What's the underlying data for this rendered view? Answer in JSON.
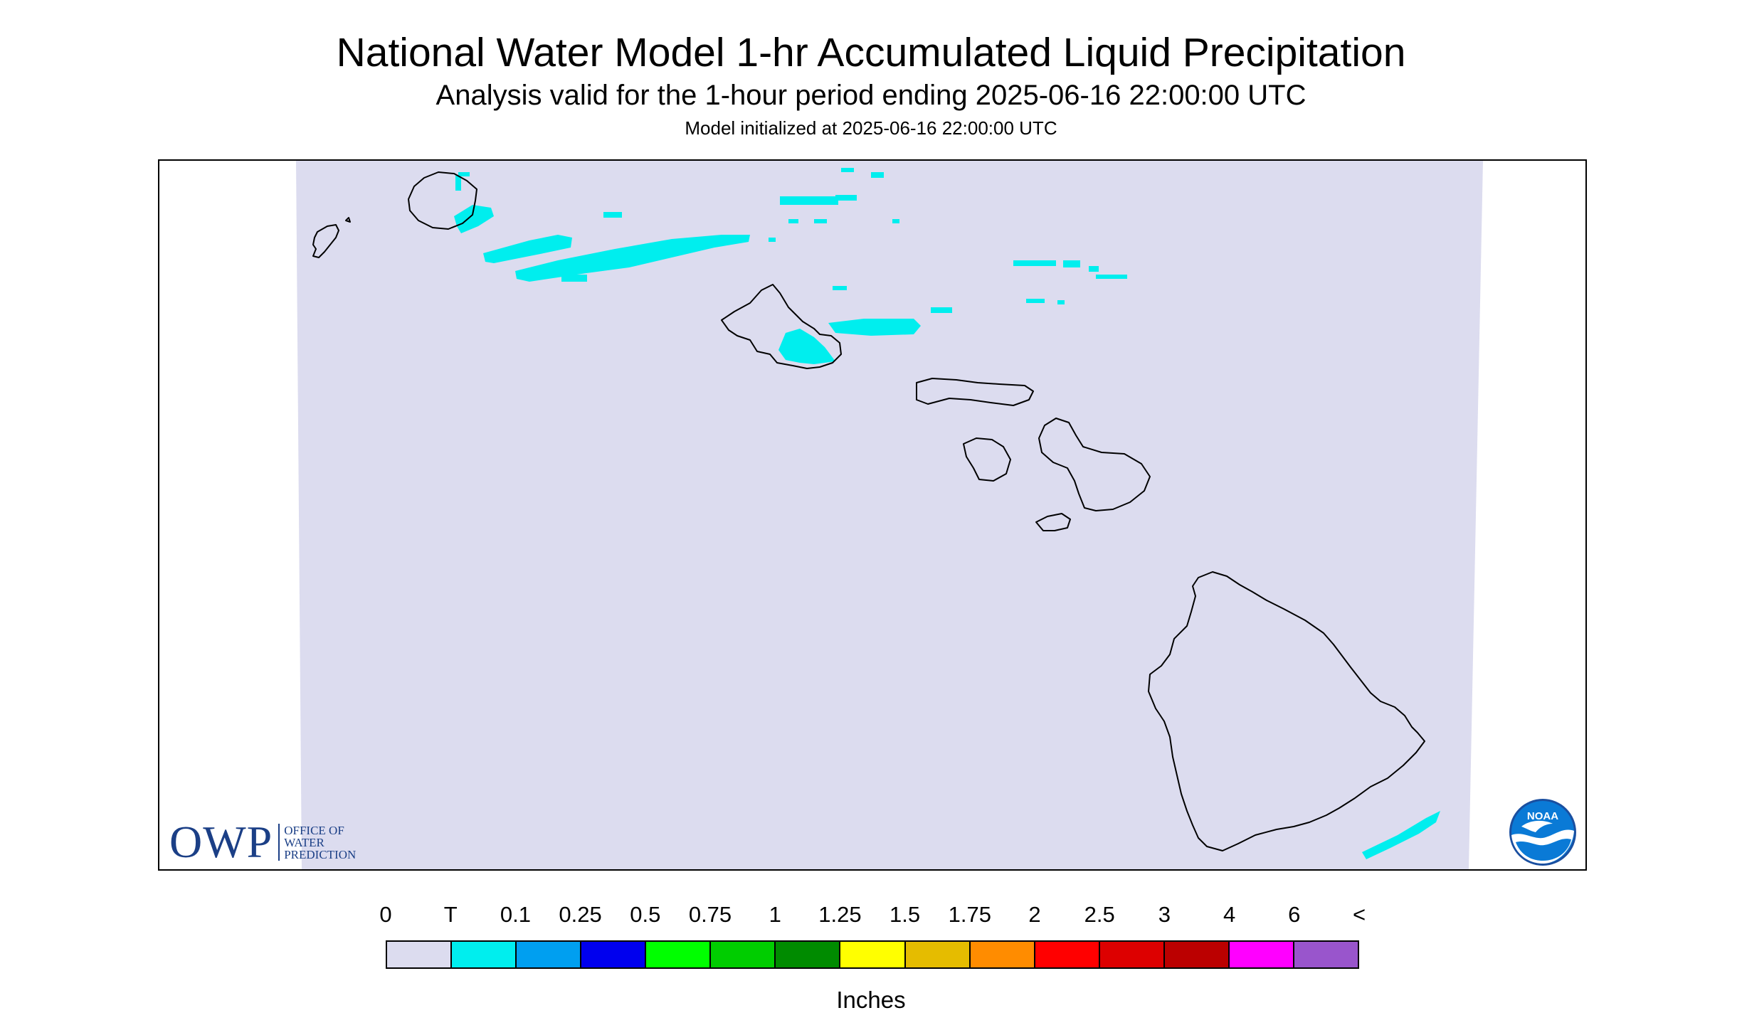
{
  "title": "National Water Model 1-hr Accumulated Liquid Precipitation",
  "subtitle": "Analysis valid for the 1-hour period ending 2025-06-16 22:00:00 UTC",
  "init_text": "Model initialized at 2025-06-16 22:00:00 UTC",
  "owp_logo": {
    "mark": "OWP",
    "lines": [
      "Office of",
      "Water",
      "Prediction"
    ],
    "color": "#1b3f86"
  },
  "noaa_logo": {
    "text": "NOAA",
    "icon": "noaa-emblem-icon"
  },
  "legend": {
    "units": "Inches",
    "labels": [
      "0",
      "T",
      "0.1",
      "0.25",
      "0.5",
      "0.75",
      "1",
      "1.25",
      "1.5",
      "1.75",
      "2",
      "2.5",
      "3",
      "4",
      "6",
      "<"
    ],
    "colors": [
      "#dcdcef",
      "#00eeee",
      "#009ff0",
      "#0000ee",
      "#00ff00",
      "#00cd00",
      "#008b00",
      "#ffff00",
      "#e5bc00",
      "#ff8c00",
      "#ff0000",
      "#dd0000",
      "#bb0000",
      "#ff00ff",
      "#9955cc"
    ]
  },
  "map": {
    "background": "#dcdcef",
    "precip_color": "#00eeee",
    "islands": [
      "Niihau",
      "Kauai",
      "Oahu",
      "Molokai",
      "Lanai",
      "Maui",
      "Kahoolawe",
      "Hawaii"
    ]
  }
}
